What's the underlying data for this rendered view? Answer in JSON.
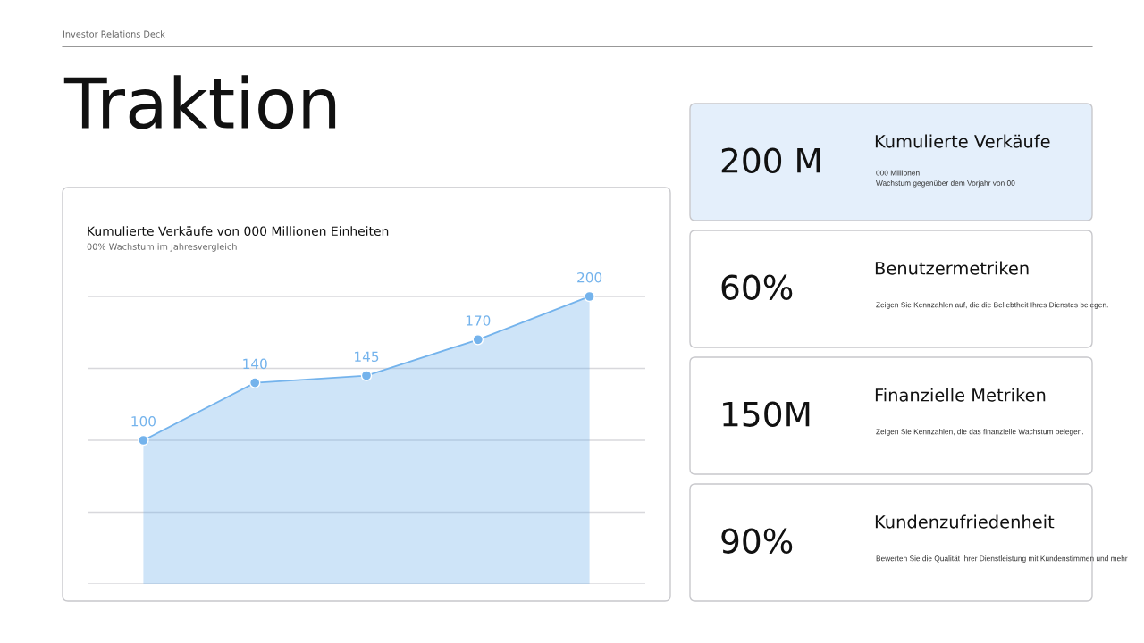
{
  "chart_data": [
    {
      "type": "other",
      "title": "Traktion",
      "annotations": [
        "Investor Relations Deck"
      ]
    },
    {
      "type": "area",
      "title": "Kumulierte Verkäufe von 000 Millionen Einheiten",
      "subtitle": "00% Wachstum im Jahresvergleich",
      "categories": [
        null,
        null,
        null,
        null,
        null
      ],
      "series": [
        {
          "color": "#74b3ec",
          "values": [
            100,
            140,
            145,
            170,
            200
          ]
        }
      ],
      "ylim": [
        0,
        200
      ],
      "yticks": [
        0,
        50,
        100,
        150,
        200
      ],
      "grid": "y",
      "tick_labels": false,
      "marker": "circle",
      "line_style": "solid",
      "data_labels": true
    },
    {
      "type": "other",
      "annotations": [
        "200 M",
        "Kumulierte Verkäufe",
        "000 Millionen\nWachstum gegenüber dem Vorjahr von 00",
        "60%",
        "Benutzermetriken",
        "Zeigen Sie Kennzahlen auf, die die Beliebtheit Ihres Dienstes belegen.",
        "150M",
        "Finanzielle Metriken",
        "Zeigen Sie Kennzahlen, die das finanzielle Wachstum belegen.",
        "90%",
        "Kundenzufriedenheit",
        "Bewerten Sie die Qualität Ihrer Dienstleistung mit Kundenstimmen und mehr"
      ]
    }
  ]
}
